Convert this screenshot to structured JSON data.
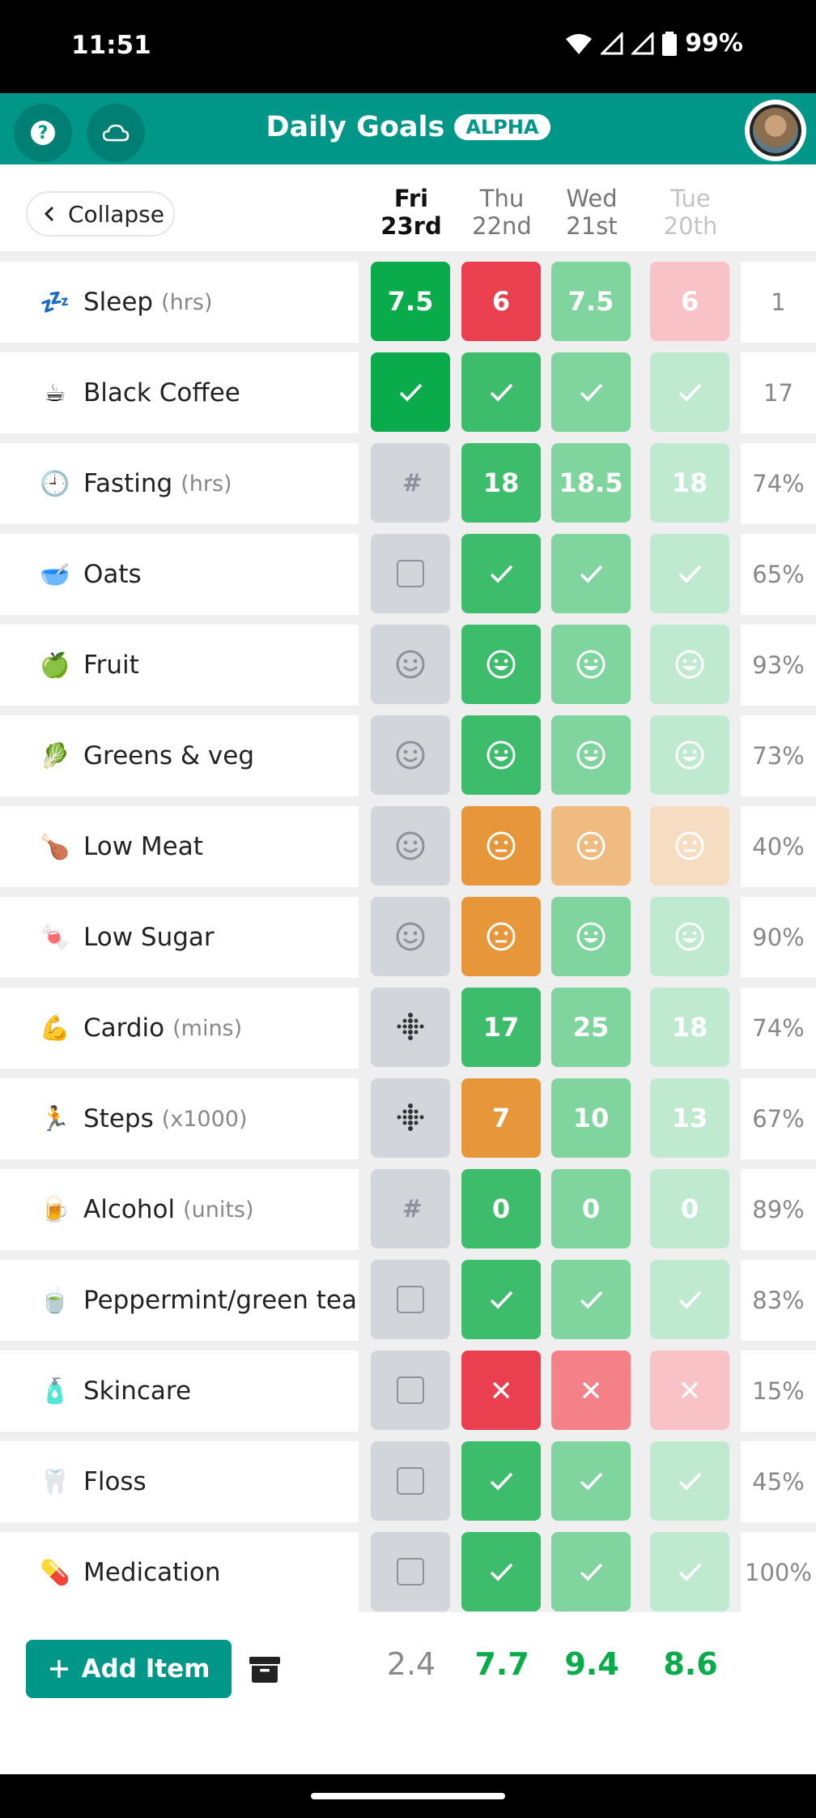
{
  "status": {
    "time": "11:51",
    "battery": "99%"
  },
  "header": {
    "title": "Daily Goals",
    "badge": "ALPHA"
  },
  "collapse": {
    "label": "Collapse"
  },
  "days": [
    {
      "top": "Fri",
      "bottom": "23rd",
      "style": "today"
    },
    {
      "top": "Thu",
      "bottom": "22nd",
      "style": "normal"
    },
    {
      "top": "Wed",
      "bottom": "21st",
      "style": "normal"
    },
    {
      "top": "Tue",
      "bottom": "20th",
      "style": "faded"
    }
  ],
  "rows": [
    {
      "icon": "💤",
      "name": "Sleep",
      "unit": "(hrs)",
      "cells": [
        {
          "v": "7.5",
          "c": "green"
        },
        {
          "v": "6",
          "c": "red"
        },
        {
          "v": "7.5",
          "c": "green3"
        },
        {
          "v": "6",
          "c": "red3"
        }
      ],
      "stat": "1"
    },
    {
      "icon": "☕",
      "name": "Black Coffee",
      "unit": "",
      "cells": [
        {
          "v": "check",
          "c": "green"
        },
        {
          "v": "check",
          "c": "green2"
        },
        {
          "v": "check",
          "c": "green3"
        },
        {
          "v": "check",
          "c": "green4"
        }
      ],
      "stat": "17"
    },
    {
      "icon": "🕘",
      "name": "Fasting",
      "unit": "(hrs)",
      "cells": [
        {
          "v": "hash",
          "c": "grey"
        },
        {
          "v": "18",
          "c": "green2"
        },
        {
          "v": "18.5",
          "c": "green3"
        },
        {
          "v": "18",
          "c": "green4"
        }
      ],
      "stat": "74%"
    },
    {
      "icon": "🥣",
      "name": "Oats",
      "unit": "",
      "cells": [
        {
          "v": "box",
          "c": "grey"
        },
        {
          "v": "check",
          "c": "green2"
        },
        {
          "v": "check",
          "c": "green3"
        },
        {
          "v": "check",
          "c": "green4"
        }
      ],
      "stat": "65%"
    },
    {
      "icon": "🍏",
      "name": "Fruit",
      "unit": "",
      "cells": [
        {
          "v": "smile",
          "c": "grey"
        },
        {
          "v": "happy",
          "c": "green2"
        },
        {
          "v": "happy",
          "c": "green3"
        },
        {
          "v": "happy",
          "c": "green4"
        }
      ],
      "stat": "93%"
    },
    {
      "icon": "🥬",
      "name": "Greens & veg",
      "unit": "",
      "cells": [
        {
          "v": "smile",
          "c": "grey"
        },
        {
          "v": "happy",
          "c": "green2"
        },
        {
          "v": "happy",
          "c": "green3"
        },
        {
          "v": "happy",
          "c": "green4"
        }
      ],
      "stat": "73%"
    },
    {
      "icon": "🍗",
      "name": "Low Meat",
      "unit": "",
      "cells": [
        {
          "v": "smile",
          "c": "grey"
        },
        {
          "v": "neutral",
          "c": "orange"
        },
        {
          "v": "neutral",
          "c": "orange2"
        },
        {
          "v": "neutral",
          "c": "orange3"
        }
      ],
      "stat": "40%"
    },
    {
      "icon": "🍬",
      "name": "Low Sugar",
      "unit": "",
      "cells": [
        {
          "v": "smile",
          "c": "grey"
        },
        {
          "v": "neutral",
          "c": "orange"
        },
        {
          "v": "happy",
          "c": "green3"
        },
        {
          "v": "happy",
          "c": "green4"
        }
      ],
      "stat": "90%"
    },
    {
      "icon": "💪",
      "name": "Cardio",
      "unit": "(mins)",
      "cells": [
        {
          "v": "dots",
          "c": "grey"
        },
        {
          "v": "17",
          "c": "green2"
        },
        {
          "v": "25",
          "c": "green3"
        },
        {
          "v": "18",
          "c": "green4"
        }
      ],
      "stat": "74%"
    },
    {
      "icon": "🏃",
      "name": "Steps",
      "unit": "(x1000)",
      "cells": [
        {
          "v": "dots",
          "c": "grey"
        },
        {
          "v": "7",
          "c": "orange"
        },
        {
          "v": "10",
          "c": "green3"
        },
        {
          "v": "13",
          "c": "green4"
        }
      ],
      "stat": "67%"
    },
    {
      "icon": "🍺",
      "name": "Alcohol",
      "unit": "(units)",
      "cells": [
        {
          "v": "hash",
          "c": "grey"
        },
        {
          "v": "0",
          "c": "green2"
        },
        {
          "v": "0",
          "c": "green3"
        },
        {
          "v": "0",
          "c": "green4"
        }
      ],
      "stat": "89%"
    },
    {
      "icon": "🍵",
      "name": "Peppermint/green tea",
      "unit": "",
      "cells": [
        {
          "v": "box",
          "c": "grey"
        },
        {
          "v": "check",
          "c": "green2"
        },
        {
          "v": "check",
          "c": "green3"
        },
        {
          "v": "check",
          "c": "green4"
        }
      ],
      "stat": "83%"
    },
    {
      "icon": "🧴",
      "name": "Skincare",
      "unit": "",
      "cells": [
        {
          "v": "box",
          "c": "grey"
        },
        {
          "v": "cross",
          "c": "red"
        },
        {
          "v": "cross",
          "c": "red2"
        },
        {
          "v": "cross",
          "c": "red3"
        }
      ],
      "stat": "15%"
    },
    {
      "icon": "🦷",
      "name": "Floss",
      "unit": "",
      "cells": [
        {
          "v": "box",
          "c": "grey"
        },
        {
          "v": "check",
          "c": "green2"
        },
        {
          "v": "check",
          "c": "green3"
        },
        {
          "v": "check",
          "c": "green4"
        }
      ],
      "stat": "45%"
    },
    {
      "icon": "💊",
      "name": "Medication",
      "unit": "",
      "cells": [
        {
          "v": "box",
          "c": "grey"
        },
        {
          "v": "check",
          "c": "green2"
        },
        {
          "v": "check",
          "c": "green3"
        },
        {
          "v": "check",
          "c": "green4"
        }
      ],
      "stat": "100%"
    }
  ],
  "footer": {
    "add_label": "Add Item",
    "totals": [
      "2.4",
      "7.7",
      "9.4",
      "8.6"
    ]
  }
}
